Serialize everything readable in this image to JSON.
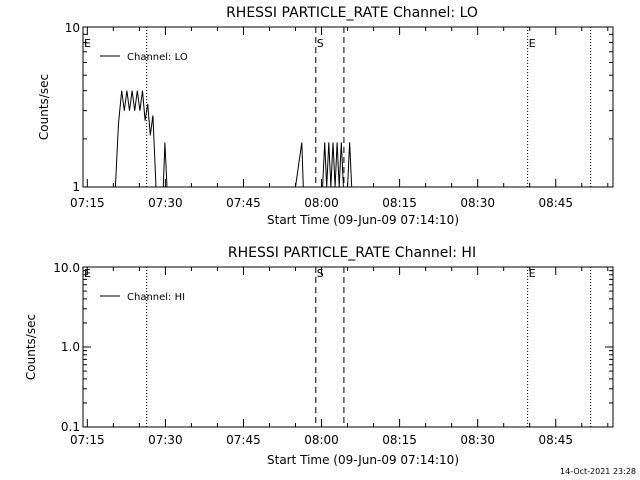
{
  "footer": {
    "timestamp": "14-Oct-2021 23:28"
  },
  "colors": {
    "background": "#ffffff",
    "foreground": "#000000"
  },
  "chart_data": [
    {
      "type": "line",
      "title": "RHESSI PARTICLE_RATE Channel: LO",
      "xlabel": "Start Time (09-Jun-09 07:14:10)",
      "ylabel": "Counts/sec",
      "y_scale": "log",
      "xlim_minutes": [
        14.17,
        116.0
      ],
      "ylim": [
        1,
        10
      ],
      "x_ticks": [
        "07:15",
        "07:30",
        "07:45",
        "08:00",
        "08:15",
        "08:30",
        "08:45"
      ],
      "y_ticks": [
        "1",
        "10"
      ],
      "legend": {
        "entries": [
          "Channel: LO"
        ],
        "position": "top-left"
      },
      "series": [
        {
          "name": "Channel: LO",
          "x_minutes": [
            20.4,
            21.0,
            21.6,
            22.1,
            22.6,
            23.1,
            23.6,
            24.1,
            24.6,
            25.1,
            25.6,
            26.1,
            26.6,
            27.1,
            27.6,
            28.2,
            29.6,
            29.9,
            30.3,
            50.0,
            55.0,
            56.2,
            56.5,
            56.8,
            60.2,
            60.6,
            61.0,
            61.4,
            61.8,
            62.2,
            62.6,
            63.0,
            63.4,
            63.8,
            64.2,
            65.0,
            65.4,
            65.8
          ],
          "y": [
            1,
            2.5,
            4,
            3,
            4,
            3,
            4,
            3,
            4,
            3,
            4,
            2.6,
            3.3,
            2.1,
            2.8,
            1,
            1,
            1.9,
            1,
            1,
            1,
            1.9,
            1,
            1,
            1,
            1.9,
            1,
            1.9,
            1,
            1.9,
            1,
            1.9,
            1,
            1.9,
            1,
            1,
            1.9,
            1
          ]
        }
      ],
      "annotations": {
        "markers": [
          {
            "label": "E",
            "x_minutes": 14.17
          },
          {
            "label": "S",
            "x_minutes": 58.9
          },
          {
            "label": "E",
            "x_minutes": 99.6
          }
        ],
        "dashed_lines_minutes": [
          58.9,
          64.3
        ],
        "dotted_lines_minutes": [
          26.4,
          99.6,
          111.7
        ]
      }
    },
    {
      "type": "line",
      "title": "RHESSI PARTICLE_RATE Channel: HI",
      "xlabel": "Start Time (09-Jun-09 07:14:10)",
      "ylabel": "Counts/sec",
      "y_scale": "log",
      "xlim_minutes": [
        14.17,
        116.0
      ],
      "ylim": [
        0.1,
        10
      ],
      "x_ticks": [
        "07:15",
        "07:30",
        "07:45",
        "08:00",
        "08:15",
        "08:30",
        "08:45"
      ],
      "y_ticks": [
        "10.0",
        "1.0",
        "0.1"
      ],
      "legend": {
        "entries": [
          "Channel: HI"
        ],
        "position": "top-left"
      },
      "series": [
        {
          "name": "Channel: HI",
          "x_minutes": [],
          "y": []
        }
      ],
      "annotations": {
        "markers": [
          {
            "label": "E",
            "x_minutes": 14.17
          },
          {
            "label": "S",
            "x_minutes": 58.9
          },
          {
            "label": "E",
            "x_minutes": 99.6
          }
        ],
        "dashed_lines_minutes": [
          58.9,
          64.3
        ],
        "dotted_lines_minutes": [
          26.4,
          99.6,
          111.7
        ]
      }
    }
  ]
}
